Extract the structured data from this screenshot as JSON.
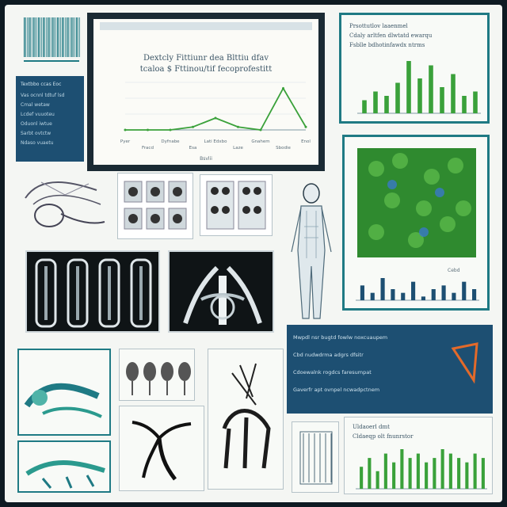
{
  "colors": {
    "background": "#0e1a22",
    "sheet": "#f4f6f3",
    "teal": "#1f7a84",
    "navy": "#1d4f72",
    "green": "#3aa13a",
    "lightgreen": "#8fd36a",
    "xray": "#0f1416"
  },
  "main_chart": {
    "title_line1": "Dextcly Fittiunr dea Blttiu dfav",
    "title_line2": "tcaloa $ Fttinou/tif fecoprofestitt",
    "tick_labels": [
      "Pyer",
      "Fracd",
      "Dyfnabe",
      "Esa",
      "Lati Edxbo",
      "Laze",
      "Gnahem",
      "Sbodie",
      "Enol"
    ],
    "footer": "Bsvlii",
    "chart_data": {
      "type": "line",
      "categories": [
        "Pyer",
        "Fracd",
        "Dyfnabe",
        "Esa",
        "Lati Edxbo",
        "Laze",
        "Gnahem",
        "Sbodie",
        "Enol"
      ],
      "series": [
        {
          "values": [
            0,
            0,
            0,
            1,
            4,
            1,
            0,
            14,
            1
          ]
        }
      ],
      "ylim": [
        0,
        16
      ]
    }
  },
  "top_right_chart": {
    "title_line1": "Prsottutlov laaenmel",
    "title_line2": "Cdaly arltfen dlwtatd ewarqu",
    "title_line3": "Fsblle bdhotinfawdx ntrms",
    "chart_data": {
      "type": "bar",
      "values": [
        3,
        5,
        4,
        7,
        12,
        8,
        11,
        6,
        9,
        4,
        5
      ]
    }
  },
  "text_block": {
    "heading": "Textbbo ccas Eoc",
    "lines": [
      "Vas ocnnl tdtuf lsd",
      "Cmal wetaw",
      "Lcdef vuuoteu",
      "Oduonl iwtue",
      "Sarbt ovtctw",
      "Ndaso vuaetu"
    ]
  },
  "right_text_panel": {
    "lines": [
      "Mwpdl nsr bugtd fowlw noxcuaupem",
      "Cbd nudwdrma adgrs dfsitr",
      "Cdoewalnk rogdcs faresumpat",
      "Gaverfr apt ovnpel ncwadpctnem"
    ]
  },
  "mid_right_chart": {
    "axis_label": "Cebd",
    "chart_data": {
      "type": "bar",
      "values": [
        4,
        2,
        6,
        3,
        2,
        5,
        1,
        3,
        4,
        2,
        5,
        3
      ]
    }
  },
  "bottom_right_chart": {
    "title_line1": "Uldaoerl dmt",
    "title_line2": "Cldaeqp olt fnunrstor",
    "chart_data": {
      "type": "bar",
      "values": [
        5,
        7,
        4,
        8,
        6,
        9,
        7,
        8,
        6,
        7,
        9,
        8,
        7,
        6,
        8,
        7
      ]
    }
  }
}
